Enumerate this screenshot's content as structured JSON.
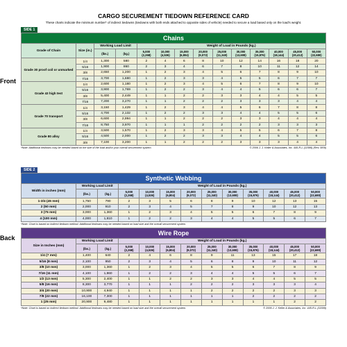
{
  "doc": {
    "title": "CARGO SECUREMENT TIEDOWN REFERENCE CARD",
    "subtitle": "These charts indicate the minimum number* of indirect tiedowns (tiedowns with both ends attached to opposite sides of vehicle) needed to secure a load based only on the load's weight."
  },
  "front_label": "Front",
  "back_label": "Back",
  "weight_header": "Weight of Load in Pounds (kg.)",
  "wll_header": "Working Load Limit",
  "wll_units": [
    "(lbs.)",
    "(kg.)"
  ],
  "weights_lb": [
    "5,000",
    "10,000",
    "15,000",
    "20,000",
    "25,000",
    "30,000",
    "35,000",
    "40,000",
    "45,000",
    "50,000"
  ],
  "weights_kg": [
    "(2,268)",
    "(4,536)",
    "(6,804)",
    "(9,072)",
    "(11,340)",
    "(13,608)",
    "(15,876)",
    "(18,144)",
    "(20,412)",
    "(22,680)"
  ],
  "chains": {
    "side_tag": "SIDE 1",
    "title": "Chains",
    "col1": "Grade of Chain",
    "col2": "Size (in.)",
    "groups": [
      {
        "label": "Grade 30 proof coil or unmarked",
        "rows": [
          {
            "size": "1/4",
            "lb": "1,300",
            "kg": "580",
            "n": [
              "2",
              "4",
              "6",
              "8",
              "10",
              "12",
              "14",
              "16",
              "18",
              "20"
            ]
          },
          {
            "size": "5/16",
            "lb": "1,900",
            "kg": "860",
            "n": [
              "2",
              "3",
              "4",
              "6",
              "7",
              "8",
              "10",
              "11",
              "12",
              "14"
            ]
          },
          {
            "size": "3/8",
            "lb": "2,650",
            "kg": "1,200",
            "n": [
              "1",
              "2",
              "3",
              "4",
              "5",
              "6",
              "7",
              "8",
              "9",
              "10"
            ]
          },
          {
            "size": "7/16",
            "lb": "3,700",
            "kg": "1,680",
            "n": [
              "1",
              "2",
              "3",
              "3",
              "4",
              "5",
              "5",
              "6",
              "7",
              "7"
            ]
          }
        ]
      },
      {
        "label": "Grade 43 high test",
        "rows": [
          {
            "size": "1/4",
            "lb": "2,600",
            "kg": "1,180",
            "n": [
              "1",
              "2",
              "3",
              "4",
              "5",
              "6",
              "7",
              "8",
              "9",
              "10"
            ]
          },
          {
            "size": "5/16",
            "lb": "3,900",
            "kg": "1,769",
            "n": [
              "1",
              "2",
              "2",
              "3",
              "4",
              "4",
              "5",
              "6",
              "6",
              "7"
            ]
          },
          {
            "size": "3/8",
            "lb": "5,400",
            "kg": "2,449",
            "n": [
              "1",
              "1",
              "2",
              "2",
              "3",
              "3",
              "4",
              "4",
              "5",
              "5"
            ]
          },
          {
            "size": "7/16",
            "lb": "7,200",
            "kg": "3,270",
            "n": [
              "1",
              "1",
              "2",
              "2",
              "2",
              "3",
              "3",
              "3",
              "4",
              "4"
            ]
          }
        ]
      },
      {
        "label": "Grade 70 transport",
        "rows": [
          {
            "size": "1/4",
            "lb": "3,150",
            "kg": "1,429",
            "n": [
              "1",
              "2",
              "3",
              "4",
              "4",
              "5",
              "6",
              "7",
              "8",
              "8"
            ]
          },
          {
            "size": "5/16",
            "lb": "4,700",
            "kg": "2,132",
            "n": [
              "1",
              "2",
              "2",
              "3",
              "3",
              "4",
              "4",
              "5",
              "5",
              "6"
            ]
          },
          {
            "size": "3/8",
            "lb": "6,600",
            "kg": "2,994",
            "n": [
              "1",
              "1",
              "2",
              "2",
              "2",
              "3",
              "3",
              "4",
              "4",
              "4"
            ]
          },
          {
            "size": "7/16",
            "lb": "8,750",
            "kg": "3,970",
            "n": [
              "1",
              "1",
              "1",
              "2",
              "2",
              "2",
              "2",
              "3",
              "3",
              "3"
            ]
          }
        ]
      },
      {
        "label": "Grade 80 alloy",
        "rows": [
          {
            "size": "1/4",
            "lb": "3,500",
            "kg": "1,570",
            "n": [
              "1",
              "2",
              "3",
              "3",
              "4",
              "5",
              "5",
              "6",
              "7",
              "8"
            ]
          },
          {
            "size": "5/16",
            "lb": "4,500",
            "kg": "2,000",
            "n": [
              "1",
              "2",
              "2",
              "3",
              "3",
              "4",
              "4",
              "5",
              "5",
              "6"
            ]
          },
          {
            "size": "3/8",
            "lb": "7,100",
            "kg": "3,200",
            "n": [
              "1",
              "1",
              "2",
              "2",
              "2",
              "3",
              "3",
              "3",
              "4",
              "4"
            ]
          }
        ]
      }
    ],
    "note": "*Note: Additional tiedowns may be needed based on the size of the load and/or your overall securement system.",
    "copyright": "© 2006 J. J. Keller & Associates, Inc.   445-R-L (11599) (Rev. 8/09)"
  },
  "webbing": {
    "side_tag": "SIDE 2",
    "title": "Synthetic Webbing",
    "col1": "Width in inches (mm)",
    "rows": [
      {
        "label": "1-3/4 (45 mm)",
        "lb": "1,750",
        "kg": "790",
        "n": [
          "2",
          "3",
          "5",
          "6",
          "8",
          "9",
          "10",
          "12",
          "13",
          "15"
        ]
      },
      {
        "label": "2 (50 mm)",
        "lb": "2,000",
        "kg": "910",
        "n": [
          "2",
          "3",
          "4",
          "5",
          "7",
          "8",
          "9",
          "10",
          "12",
          "13"
        ]
      },
      {
        "label": "3 (75 mm)",
        "lb": "3,000",
        "kg": "1,360",
        "n": [
          "1",
          "2",
          "3",
          "4",
          "5",
          "5",
          "6",
          "7",
          "8",
          "9"
        ]
      },
      {
        "label": "4 (100 mm)",
        "lb": "4,000",
        "kg": "1,810",
        "n": [
          "1",
          "2",
          "2",
          "3",
          "4",
          "4",
          "5",
          "5",
          "6",
          "7"
        ]
      }
    ],
    "note": "*Note: Chart is based on indirect tiedown method. Additional tiedowns may be needed based on load size and the overall securement system."
  },
  "wire": {
    "title": "Wire Rope",
    "col1": "Size in Inches (mm)",
    "rows": [
      {
        "label": "1/4 (7 mm)",
        "lb": "1,400",
        "kg": "640",
        "n": [
          "2",
          "4",
          "6",
          "8",
          "9",
          "11",
          "13",
          "15",
          "17",
          "18"
        ]
      },
      {
        "label": "5/16 (8 mm)",
        "lb": "2,100",
        "kg": "950",
        "n": [
          "2",
          "3",
          "4",
          "5",
          "6",
          "8",
          "9",
          "10",
          "11",
          "12"
        ]
      },
      {
        "label": "3/8 (10 mm)",
        "lb": "3,000",
        "kg": "1,360",
        "n": [
          "1",
          "2",
          "3",
          "4",
          "5",
          "5",
          "6",
          "7",
          "8",
          "9"
        ]
      },
      {
        "label": "7/16 (11 mm)",
        "lb": "4,100",
        "kg": "1,860",
        "n": [
          "1",
          "2",
          "2",
          "3",
          "4",
          "4",
          "5",
          "5",
          "6",
          "7"
        ]
      },
      {
        "label": "1/2 (13 mm)",
        "lb": "5,300",
        "kg": "2,400",
        "n": [
          "1",
          "1",
          "2",
          "2",
          "3",
          "3",
          "4",
          "4",
          "5",
          "5"
        ]
      },
      {
        "label": "5/8 (16 mm)",
        "lb": "8,300",
        "kg": "3,770",
        "n": [
          "1",
          "1",
          "1",
          "2",
          "2",
          "2",
          "3",
          "3",
          "3",
          "4"
        ]
      },
      {
        "label": "3/4 (20 mm)",
        "lb": "10,900",
        "kg": "4,940",
        "n": [
          "1",
          "1",
          "1",
          "1",
          "2",
          "2",
          "2",
          "2",
          "3",
          "3"
        ]
      },
      {
        "label": "7/8 (22 mm)",
        "lb": "16,100",
        "kg": "7,300",
        "n": [
          "1",
          "1",
          "1",
          "1",
          "1",
          "1",
          "2",
          "2",
          "2",
          "2"
        ]
      },
      {
        "label": "1 (25 mm)",
        "lb": "20,900",
        "kg": "9,480",
        "n": [
          "1",
          "1",
          "1",
          "1",
          "1",
          "1",
          "1",
          "1",
          "2",
          "2"
        ]
      }
    ],
    "note": "*Note: Chart is based on indirect tiedown method. Additional tiedowns may be needed based on load size and the overall securement system.",
    "copyright": "© 2006 J. J. Keller & Associates, Inc.   445-R-L (11599)"
  }
}
